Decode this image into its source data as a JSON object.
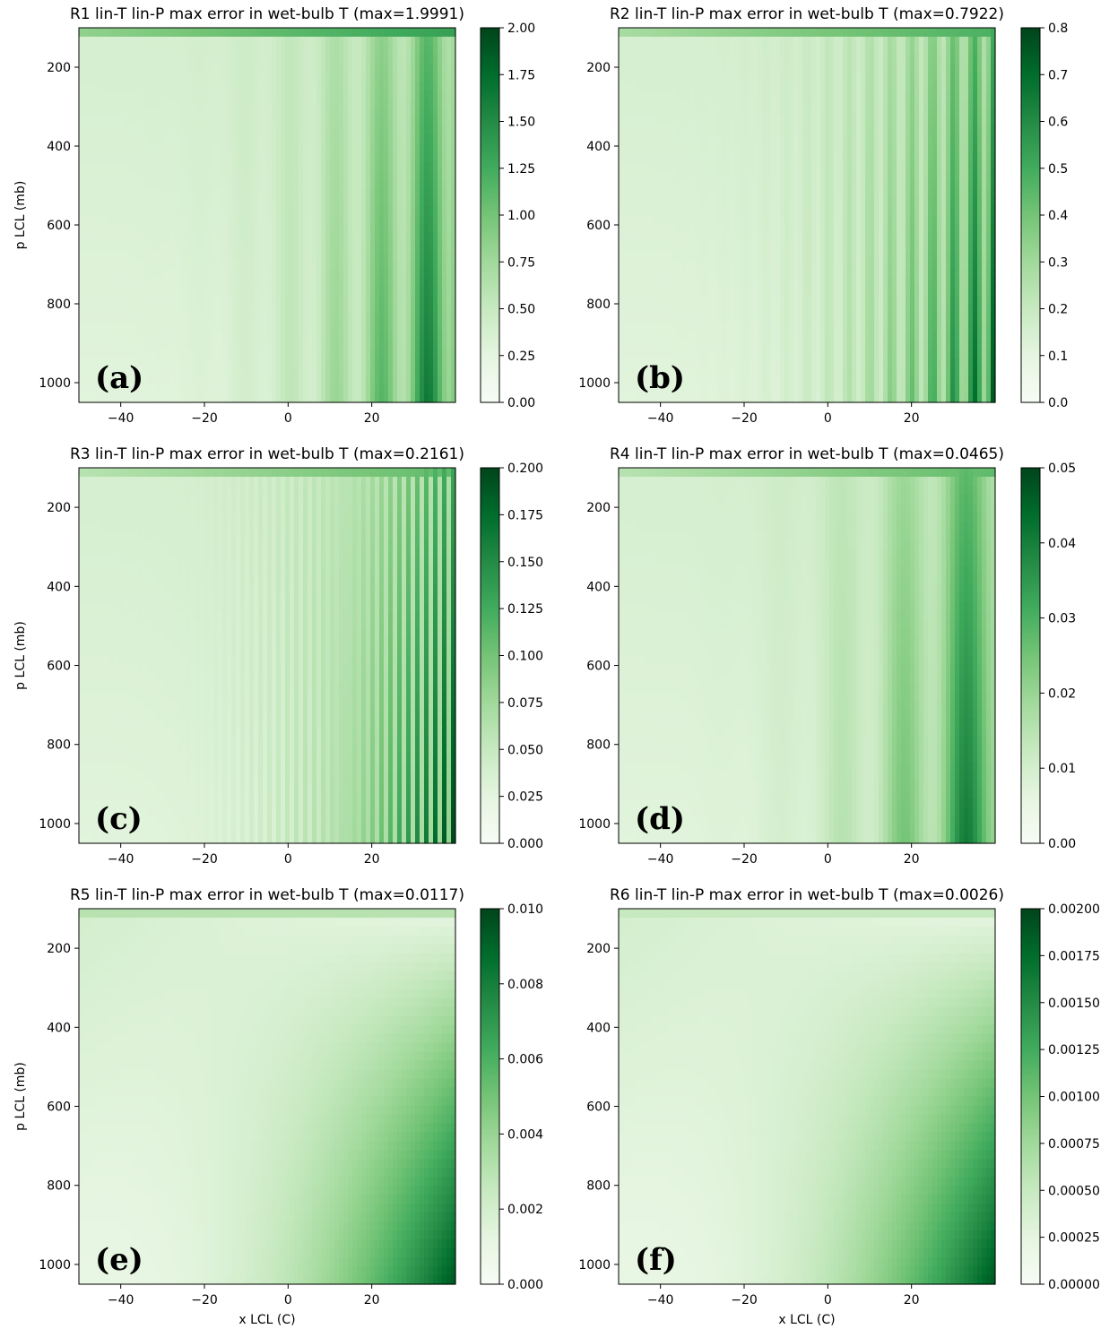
{
  "chart_data": [
    {
      "type": "heatmap",
      "title": "R1 lin-T lin-P max error in wet-bulb T (max=1.9991)",
      "panel_label": "(a)",
      "xlabel": "",
      "ylabel": "p LCL (mb)",
      "xlim": [
        -50,
        40
      ],
      "ylim": [
        1050,
        100
      ],
      "xticks": [
        -40,
        -20,
        0,
        20
      ],
      "yticks": [
        200,
        400,
        600,
        800,
        1000
      ],
      "colormap": "Greens",
      "colorbar_range": [
        0,
        2.0
      ],
      "colorbar_ticks": [
        "0.00",
        "0.25",
        "0.50",
        "0.75",
        "1.00",
        "1.25",
        "1.50",
        "1.75",
        "2.00"
      ],
      "max_error": 1.9991,
      "stripe_period_c": 11,
      "top_band": 0.42
    },
    {
      "type": "heatmap",
      "title": "R2 lin-T lin-P max error in wet-bulb T (max=0.7922)",
      "panel_label": "(b)",
      "xlabel": "",
      "ylabel": "",
      "xlim": [
        -50,
        40
      ],
      "ylim": [
        1050,
        100
      ],
      "xticks": [
        -40,
        -20,
        0,
        20
      ],
      "yticks": [
        200,
        400,
        600,
        800,
        1000
      ],
      "colormap": "Greens",
      "colorbar_range": [
        0,
        0.8
      ],
      "colorbar_ticks": [
        "0.0",
        "0.1",
        "0.2",
        "0.3",
        "0.4",
        "0.5",
        "0.6",
        "0.7",
        "0.8"
      ],
      "max_error": 0.7922,
      "stripe_period_c": 5,
      "top_band": 0.35
    },
    {
      "type": "heatmap",
      "title": "R3 lin-T lin-P max error in wet-bulb T (max=0.2161)",
      "panel_label": "(c)",
      "xlabel": "",
      "ylabel": "p LCL (mb)",
      "xlim": [
        -50,
        40
      ],
      "ylim": [
        1050,
        100
      ],
      "xticks": [
        -40,
        -20,
        0,
        20
      ],
      "yticks": [
        200,
        400,
        600,
        800,
        1000
      ],
      "colormap": "Greens",
      "colorbar_range": [
        0,
        0.2
      ],
      "colorbar_ticks": [
        "0.000",
        "0.025",
        "0.050",
        "0.075",
        "0.100",
        "0.125",
        "0.150",
        "0.175",
        "0.200"
      ],
      "max_error": 0.2161,
      "stripe_period_c": 2.2,
      "top_band": 0.3
    },
    {
      "type": "heatmap",
      "title": "R4 lin-T lin-P max error in wet-bulb T (max=0.0465)",
      "panel_label": "(d)",
      "xlabel": "",
      "ylabel": "",
      "xlim": [
        -50,
        40
      ],
      "ylim": [
        1050,
        100
      ],
      "xticks": [
        -40,
        -20,
        0,
        20
      ],
      "yticks": [
        200,
        400,
        600,
        800,
        1000
      ],
      "colormap": "Greens",
      "colorbar_range": [
        0,
        0.05
      ],
      "colorbar_ticks": [
        "0.00",
        "0.01",
        "0.02",
        "0.03",
        "0.04",
        "0.05"
      ],
      "max_error": 0.0465,
      "stripe_period_c": 1.0,
      "top_band": 0.3
    },
    {
      "type": "heatmap",
      "title": "R5 lin-T lin-P max error in wet-bulb T (max=0.0117)",
      "panel_label": "(e)",
      "xlabel": "x LCL (C)",
      "ylabel": "p LCL (mb)",
      "xlim": [
        -50,
        40
      ],
      "ylim": [
        1050,
        100
      ],
      "xticks": [
        -40,
        -20,
        0,
        20
      ],
      "yticks": [
        200,
        400,
        600,
        800,
        1000
      ],
      "colormap": "Greens",
      "colorbar_range": [
        0,
        0.01
      ],
      "colorbar_ticks": [
        "0.000",
        "0.002",
        "0.004",
        "0.006",
        "0.008",
        "0.010"
      ],
      "max_error": 0.0117,
      "stripe_period_c": 0,
      "top_band": 0.3
    },
    {
      "type": "heatmap",
      "title": "R6 lin-T lin-P max error in wet-bulb T (max=0.0026)",
      "panel_label": "(f)",
      "xlabel": "x LCL (C)",
      "ylabel": "",
      "xlim": [
        -50,
        40
      ],
      "ylim": [
        1050,
        100
      ],
      "xticks": [
        -40,
        -20,
        0,
        20
      ],
      "yticks": [
        200,
        400,
        600,
        800,
        1000
      ],
      "colormap": "Greens",
      "colorbar_range": [
        0,
        0.002
      ],
      "colorbar_ticks": [
        "0.00000",
        "0.00025",
        "0.00050",
        "0.00075",
        "0.00100",
        "0.00125",
        "0.00150",
        "0.00175",
        "0.00200"
      ],
      "max_error": 0.0026,
      "stripe_period_c": 0,
      "top_band": 0.25
    }
  ]
}
